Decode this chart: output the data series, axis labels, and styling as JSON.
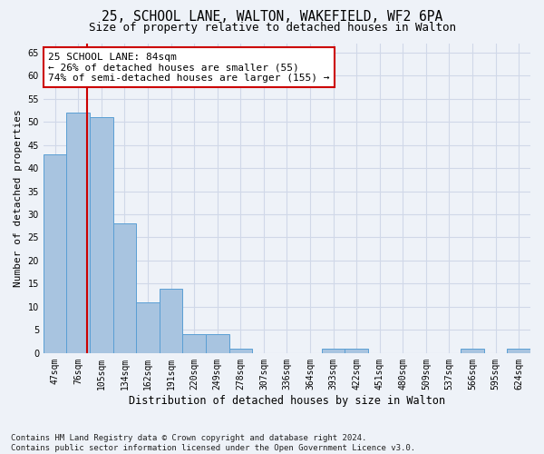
{
  "title1": "25, SCHOOL LANE, WALTON, WAKEFIELD, WF2 6PA",
  "title2": "Size of property relative to detached houses in Walton",
  "xlabel": "Distribution of detached houses by size in Walton",
  "ylabel": "Number of detached properties",
  "categories": [
    "47sqm",
    "76sqm",
    "105sqm",
    "134sqm",
    "162sqm",
    "191sqm",
    "220sqm",
    "249sqm",
    "278sqm",
    "307sqm",
    "336sqm",
    "364sqm",
    "393sqm",
    "422sqm",
    "451sqm",
    "480sqm",
    "509sqm",
    "537sqm",
    "566sqm",
    "595sqm",
    "624sqm"
  ],
  "values": [
    43,
    52,
    51,
    28,
    11,
    14,
    4,
    4,
    1,
    0,
    0,
    0,
    1,
    1,
    0,
    0,
    0,
    0,
    1,
    0,
    1
  ],
  "bar_color": "#a8c4e0",
  "bar_edge_color": "#5a9fd4",
  "grid_color": "#d0d8e8",
  "background_color": "#eef2f8",
  "vline_x": 1.37,
  "vline_color": "#cc0000",
  "annotation_text": "25 SCHOOL LANE: 84sqm\n← 26% of detached houses are smaller (55)\n74% of semi-detached houses are larger (155) →",
  "annotation_box_color": "#ffffff",
  "annotation_box_edge_color": "#cc0000",
  "ylim": [
    0,
    67
  ],
  "yticks": [
    0,
    5,
    10,
    15,
    20,
    25,
    30,
    35,
    40,
    45,
    50,
    55,
    60,
    65
  ],
  "footer": "Contains HM Land Registry data © Crown copyright and database right 2024.\nContains public sector information licensed under the Open Government Licence v3.0.",
  "title1_fontsize": 10.5,
  "title2_fontsize": 9,
  "xlabel_fontsize": 8.5,
  "ylabel_fontsize": 8,
  "tick_fontsize": 7,
  "annotation_fontsize": 8,
  "footer_fontsize": 6.5
}
